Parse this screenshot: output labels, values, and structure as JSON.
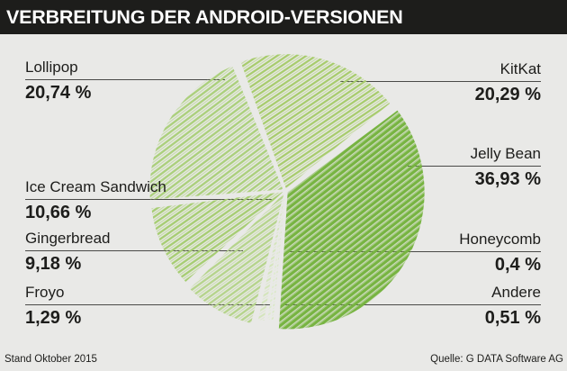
{
  "header": {
    "title": "VERBREITUNG DER ANDROID-VERSIONEN",
    "bg_color": "#1d1d1b",
    "text_color": "#ffffff"
  },
  "footer": {
    "left": "Stand Oktober 2015",
    "right": "Quelle: G DATA Software AG"
  },
  "page": {
    "background_color": "#e9e9e7",
    "leader_line_color": "#4a4a48"
  },
  "chart_data": {
    "type": "pie",
    "title": "Verbreitung der Android-Versionen",
    "unit": "%",
    "style": "hand-drawn green hatching",
    "start_angle_deg": -21,
    "direction": "clockwise",
    "slices": [
      {
        "label": "KitKat",
        "value": 20.29,
        "display": "20,29 %",
        "color": "#a7cc6c",
        "label_side": "right"
      },
      {
        "label": "Jelly Bean",
        "value": 36.93,
        "display": "36,93 %",
        "color": "#77b441",
        "label_side": "right"
      },
      {
        "label": "Honeycomb",
        "value": 0.4,
        "display": "0,4 %",
        "color": "#d8e8c3",
        "label_side": "right"
      },
      {
        "label": "Andere",
        "value": 0.51,
        "display": "0,51 %",
        "color": "#dcebca",
        "label_side": "right"
      },
      {
        "label": "Froyo",
        "value": 1.29,
        "display": "1,29 %",
        "color": "#d3e5ba",
        "label_side": "left"
      },
      {
        "label": "Gingerbread",
        "value": 9.18,
        "display": "9,18 %",
        "color": "#b5d48b",
        "label_side": "left"
      },
      {
        "label": "Ice Cream Sandwich",
        "value": 10.66,
        "display": "10,66 %",
        "color": "#a6cd72",
        "label_side": "left"
      },
      {
        "label": "Lollipop",
        "value": 20.74,
        "display": "20,74 %",
        "color": "#abd07c",
        "label_side": "left"
      }
    ]
  }
}
